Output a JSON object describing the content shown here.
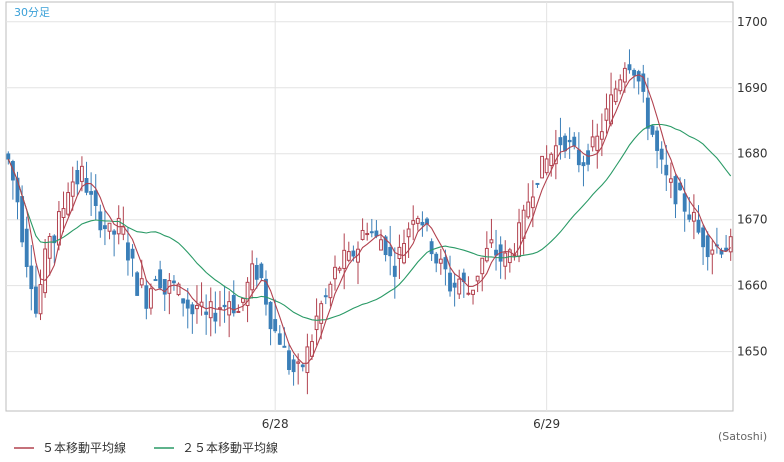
{
  "chart_data": {
    "type": "candlestick",
    "timeframe_label": "30分足",
    "credit": "(Satoshi)",
    "y_ticks": [
      1700,
      1690,
      1680,
      1670,
      1660,
      1650
    ],
    "ylim": [
      1641,
      1703
    ],
    "x_ticks": [
      {
        "label": "6/28",
        "index": 58
      },
      {
        "label": "6/29",
        "index": 117
      }
    ],
    "candle_count": 158,
    "legend": [
      {
        "label": "５本移動平均線",
        "color": "#b2424f"
      },
      {
        "label": "２５本移動平均線",
        "color": "#2a9a66"
      }
    ],
    "colors": {
      "up": "#b2424f",
      "down": "#3b7fb8",
      "grid": "#e3e3e3",
      "frame": "#bdbdbd"
    },
    "closes": [
      1679,
      1676,
      1673,
      1668,
      1664,
      1661,
      1656,
      1660,
      1664,
      1668,
      1667,
      1670,
      1672,
      1675,
      1676,
      1676,
      1677,
      1675,
      1673,
      1671,
      1670,
      1669,
      1668,
      1668,
      1669,
      1668,
      1665,
      1663,
      1660,
      1660,
      1658,
      1660,
      1662,
      1661,
      1659,
      1660,
      1660,
      1659,
      1658,
      1657,
      1656,
      1657,
      1656,
      1655,
      1656,
      1656,
      1657,
      1657,
      1658,
      1657,
      1656,
      1658,
      1660,
      1662,
      1662,
      1661,
      1658,
      1655,
      1653,
      1652,
      1650,
      1648,
      1647,
      1647,
      1648,
      1650,
      1652,
      1655,
      1657,
      1658,
      1660,
      1662,
      1663,
      1664,
      1664,
      1665,
      1666,
      1668,
      1669,
      1668,
      1667,
      1667,
      1666,
      1664,
      1663,
      1665,
      1667,
      1669,
      1671,
      1671,
      1670,
      1668,
      1666,
      1664,
      1663,
      1662,
      1660,
      1660,
      1661,
      1660,
      1659,
      1660,
      1662,
      1664,
      1665,
      1666,
      1665,
      1664,
      1664,
      1665,
      1666,
      1668,
      1670,
      1673,
      1675,
      1677,
      1678,
      1679,
      1680,
      1681,
      1682,
      1682,
      1681,
      1680,
      1679,
      1679,
      1680,
      1681,
      1682,
      1684,
      1686,
      1688,
      1690,
      1692,
      1694,
      1694,
      1693,
      1691,
      1688,
      1685,
      1683,
      1680,
      1678,
      1676,
      1675,
      1674,
      1673,
      1672,
      1671,
      1670,
      1668,
      1667,
      1666,
      1666,
      1666,
      1666,
      1666,
      1666
    ]
  }
}
